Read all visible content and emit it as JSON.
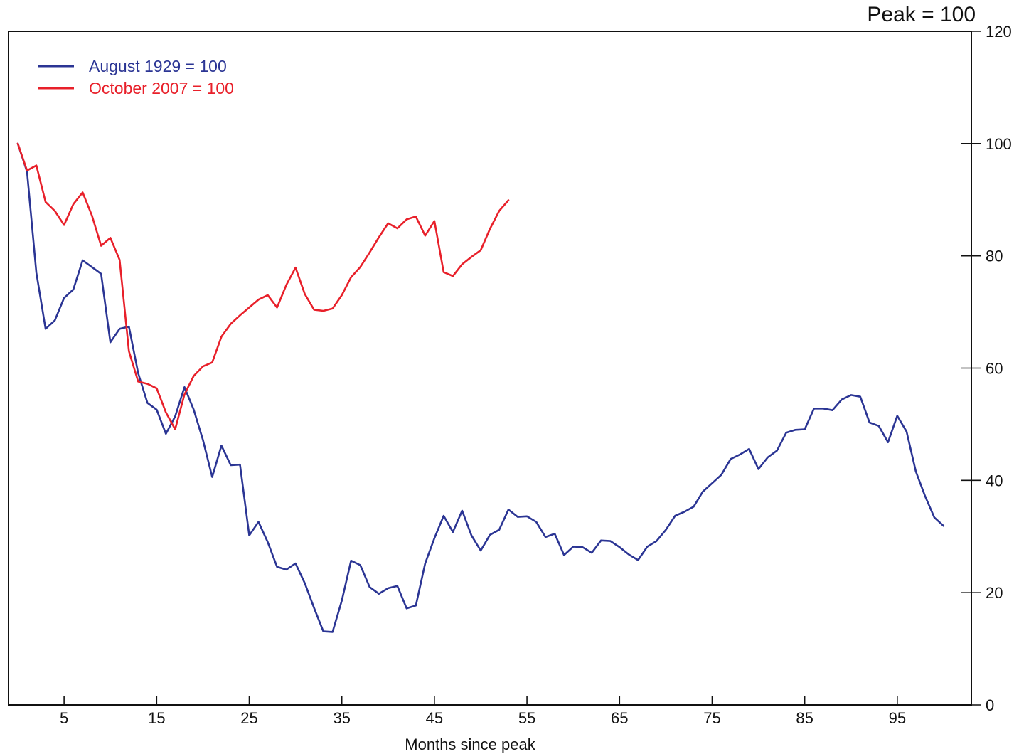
{
  "chart_data": {
    "type": "line",
    "unit_label": "Peak = 100",
    "xlabel": "Months since peak",
    "ylabel": "",
    "xlim": [
      -1,
      103
    ],
    "ylim": [
      0,
      120
    ],
    "x_ticks": [
      5,
      15,
      25,
      35,
      45,
      55,
      65,
      75,
      85,
      95
    ],
    "y_ticks": [
      0,
      20,
      40,
      60,
      80,
      100,
      120
    ],
    "y_axis_side": "right",
    "grid": false,
    "legend_position": "top-left",
    "series": [
      {
        "name": "August 1929 = 100",
        "color": "#2b3594",
        "x_start": 0,
        "values": [
          100,
          95,
          77,
          67,
          68.5,
          72.5,
          74,
          79.2,
          78,
          76.8,
          64.6,
          67,
          67.4,
          59.1,
          53.8,
          52.6,
          48.3,
          51.4,
          56.6,
          52.6,
          47.2,
          40.6,
          46.2,
          42.7,
          42.8,
          30.2,
          32.6,
          29,
          24.6,
          24.1,
          25.2,
          21.7,
          17.3,
          13.1,
          13,
          18.6,
          25.7,
          24.9,
          21,
          19.8,
          20.8,
          21.2,
          17.2,
          17.7,
          25.2,
          29.7,
          33.7,
          30.8,
          34.6,
          30.2,
          27.5,
          30.3,
          31.2,
          34.8,
          33.5,
          33.6,
          32.6,
          29.9,
          30.5,
          26.7,
          28.2,
          28.1,
          27.1,
          29.3,
          29.2,
          28.1,
          26.8,
          25.8,
          28.2,
          29.2,
          31.2,
          33.7,
          34.4,
          35.3,
          38,
          39.5,
          41,
          43.8,
          44.6,
          45.6,
          42,
          44.1,
          45.3,
          48.5,
          49,
          49.1,
          52.8,
          52.8,
          52.5,
          54.4,
          55.2,
          54.9,
          50.3,
          49.7,
          46.8,
          51.5,
          48.7,
          41.6,
          37.2,
          33.4,
          31.9
        ]
      },
      {
        "name": "October 2007 = 100",
        "color": "#e8202a",
        "x_start": 0,
        "values": [
          100,
          95.2,
          96.1,
          89.6,
          88,
          85.5,
          89.2,
          91.3,
          87.2,
          81.8,
          83.2,
          79.3,
          63,
          57.6,
          57.2,
          56.4,
          52.1,
          49.1,
          55.3,
          58.6,
          60.3,
          61,
          65.6,
          67.9,
          69.4,
          70.8,
          72.2,
          73,
          70.8,
          74.8,
          77.9,
          73.2,
          70.4,
          70.2,
          70.6,
          73,
          76.2,
          78,
          80.6,
          83.3,
          85.8,
          84.9,
          86.5,
          87,
          83.6,
          86.2,
          77.1,
          76.4,
          78.5,
          79.8,
          81,
          84.8,
          88,
          89.9
        ]
      }
    ]
  }
}
